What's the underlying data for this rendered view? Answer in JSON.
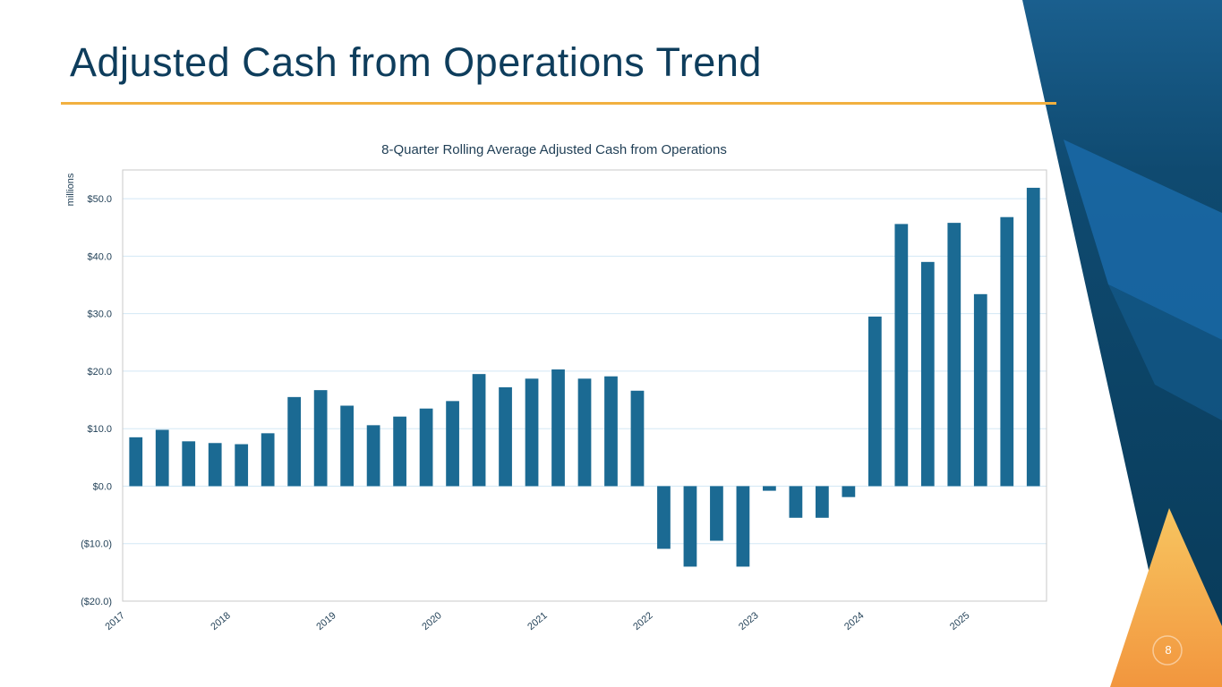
{
  "slide": {
    "title": "Adjusted Cash from Operations Trend",
    "page_number": "8"
  },
  "colors": {
    "title": "#0e3d5c",
    "rule": "#f2b040",
    "bar": "#1b6a93",
    "grid": "#d3e8f5",
    "frame": "#c8c8c8",
    "navy_deco": "#0b3d5c",
    "blue_deco": "#1a6aa8",
    "orange_deco": "#f2a445"
  },
  "chart_data": {
    "type": "bar",
    "title": "8-Quarter Rolling Average Adjusted Cash from Operations",
    "ylabel": "millions",
    "xlabel": "",
    "ylim": [
      -20,
      55
    ],
    "y_ticks": [
      -20,
      -10,
      0,
      10,
      20,
      30,
      40,
      50
    ],
    "y_tick_labels": [
      "($20.0)",
      "($10.0)",
      "$0.0",
      "$10.0",
      "$20.0",
      "$30.0",
      "$40.0",
      "$50.0"
    ],
    "x_tick_labels": [
      "2017",
      "2018",
      "2019",
      "2020",
      "2021",
      "2022",
      "2023",
      "2024",
      "2025"
    ],
    "x_tick_every_n_bars": 4,
    "grid": true,
    "values": [
      8.5,
      9.8,
      7.8,
      7.5,
      7.3,
      9.2,
      15.5,
      16.7,
      14.0,
      10.6,
      12.1,
      13.5,
      14.8,
      19.5,
      17.2,
      18.7,
      20.3,
      18.7,
      19.1,
      16.6,
      -10.9,
      -14.0,
      -9.5,
      -14.0,
      -0.8,
      -5.5,
      -5.5,
      -1.9,
      29.5,
      45.6,
      39.0,
      45.8,
      33.4,
      46.8,
      51.9
    ]
  }
}
